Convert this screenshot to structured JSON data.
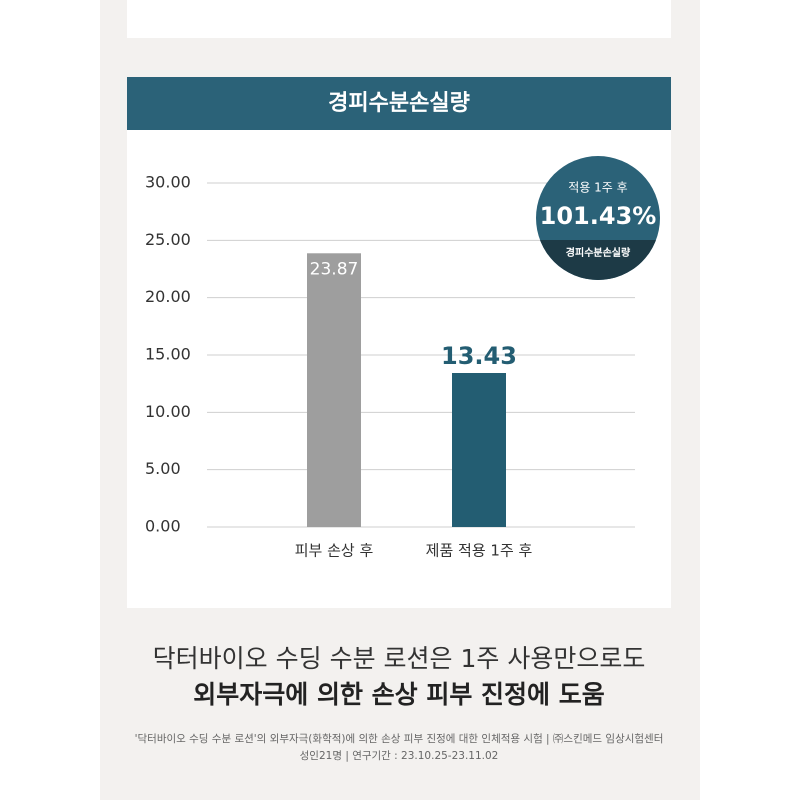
{
  "chart_data": {
    "type": "bar",
    "title": "경피수분손실량",
    "categories": [
      "피부 손상 후",
      "제품 적용 1주 후"
    ],
    "values": [
      23.87,
      13.43
    ],
    "colors": [
      "#9e9e9e",
      "#235d72"
    ],
    "ylim": [
      0,
      30
    ],
    "yticks": [
      {
        "value": 0,
        "label": "0.00"
      },
      {
        "value": 5,
        "label": "5.00"
      },
      {
        "value": 10,
        "label": "10.00"
      },
      {
        "value": 15,
        "label": "15.00"
      },
      {
        "value": 20,
        "label": "20.00"
      },
      {
        "value": 25,
        "label": "25.00"
      },
      {
        "value": 30,
        "label": "30.00"
      }
    ],
    "grid": true,
    "badge": {
      "top": "적용 1주 후",
      "main": "101.43%",
      "bottom": "경피수분손실량"
    }
  },
  "headline": [
    "닥터바이오 수딩 수분 로션은 1주 사용만으로도",
    "외부자극에 의한 손상 피부 진정에 도움"
  ],
  "footnote": [
    "'닥터바이오 수딩 수분 로션'의 외부자극(화학적)에 의한 손상 피부 진정에 대한 인체적용 시험 | ㈜스킨메드 임상시험센터",
    "성인21명 | 연구기간 : 23.10.25-23.11.02"
  ]
}
